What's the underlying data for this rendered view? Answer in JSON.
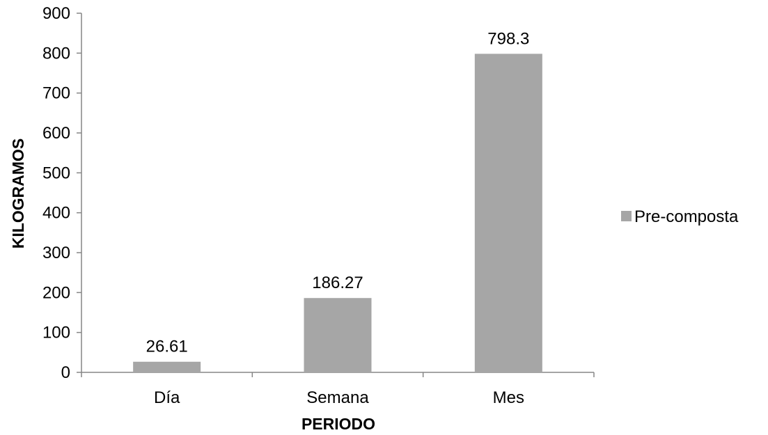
{
  "chart_data": {
    "type": "bar",
    "categories": [
      "Día",
      "Semana",
      "Mes"
    ],
    "series": [
      {
        "name": "Pre-composta",
        "values": [
          26.61,
          186.27,
          798.3
        ],
        "value_labels": [
          "26.61",
          "186.27",
          "798.3"
        ],
        "color": "#a6a6a6"
      }
    ],
    "xlabel": "PERIODO",
    "ylabel": "KILOGRAMOS",
    "ylim": [
      0,
      900
    ],
    "yticks": [
      0,
      100,
      200,
      300,
      400,
      500,
      600,
      700,
      800,
      900
    ],
    "ytick_labels": [
      "0",
      "100",
      "200",
      "300",
      "400",
      "500",
      "600",
      "700",
      "800",
      "900"
    ],
    "grid": false,
    "legend_position": "right",
    "axis_color": "#868686"
  }
}
